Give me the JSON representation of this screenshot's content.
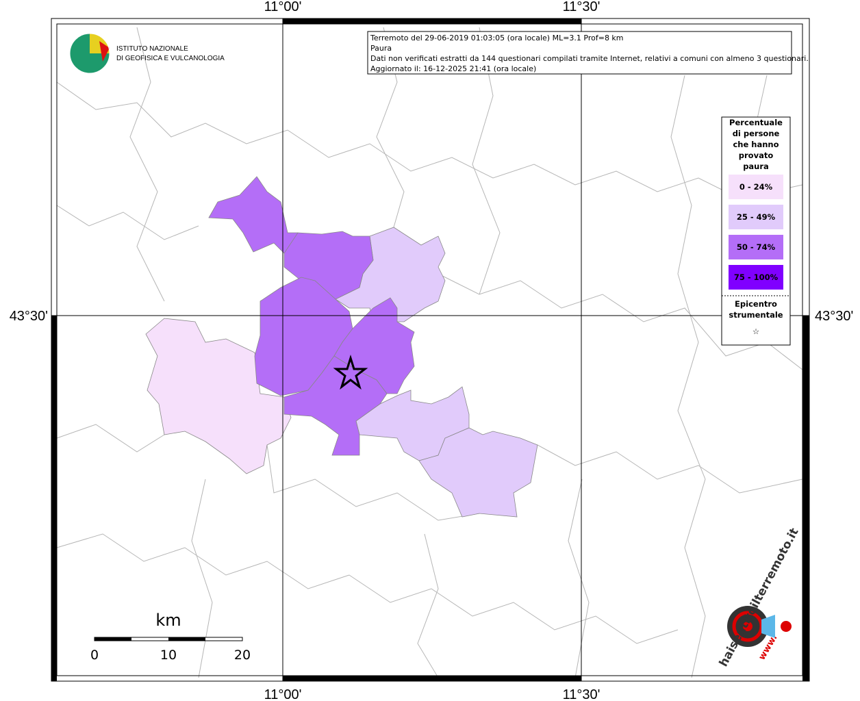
{
  "axes": {
    "top": [
      "11°00'",
      "11°30'"
    ],
    "bottom": [
      "11°00'",
      "11°30'"
    ],
    "left": "43°30'",
    "right": "43°30'"
  },
  "logo": {
    "line1": "ISTITUTO NAZIONALE",
    "line2": "DI GEOFISICA E VULCANOLOGIA"
  },
  "info": {
    "lines": [
      "Terremoto del 29-06-2019 01:03:05 (ora locale) ML=3.1 Prof=8 km",
      "Paura",
      "Dati non verificati estratti da 144 questionari compilati tramite Internet, relativi a comuni con almeno 3 questionari.",
      "Aggiornato il: 16-12-2025 21:41 (ora locale)"
    ]
  },
  "legend": {
    "title": [
      "Percentuale",
      "di persone",
      "che hanno",
      "provato",
      "paura"
    ],
    "items": [
      {
        "label": "0 - 24%",
        "color": "#f6e0fb"
      },
      {
        "label": "25 - 49%",
        "color": "#e1cbfb"
      },
      {
        "label": "50 - 74%",
        "color": "#b46ef7"
      },
      {
        "label": "75 - 100%",
        "color": "#8000ff"
      }
    ],
    "epicenter": [
      "Epicentro",
      "strumentale"
    ]
  },
  "scale": {
    "unit": "km",
    "ticks": [
      0,
      10,
      20
    ]
  },
  "brand": {
    "site": "haisentitoilterremoto.it",
    "www": "www."
  }
}
